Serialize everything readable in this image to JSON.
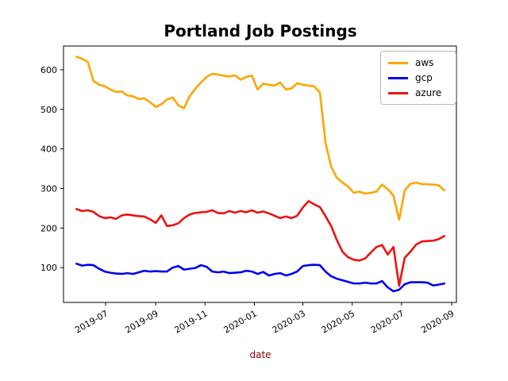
{
  "chart_data": {
    "type": "line",
    "title": "Portland Job Postings",
    "xlabel": "date",
    "xlabel_color": "#8b0000",
    "ylabel": "",
    "grid": false,
    "legend_position": "upper right",
    "ylim": [
      12,
      660
    ],
    "yticks": [
      100,
      200,
      300,
      400,
      500,
      600
    ],
    "xticks": [
      "2019-07",
      "2019-09",
      "2019-11",
      "2020-01",
      "2020-03",
      "2020-05",
      "2020-07",
      "2020-09"
    ],
    "x": [
      "2019-05-26",
      "2019-06-02",
      "2019-06-09",
      "2019-06-16",
      "2019-06-23",
      "2019-06-30",
      "2019-07-07",
      "2019-07-14",
      "2019-07-21",
      "2019-07-28",
      "2019-08-04",
      "2019-08-11",
      "2019-08-18",
      "2019-08-25",
      "2019-09-01",
      "2019-09-08",
      "2019-09-15",
      "2019-09-22",
      "2019-09-29",
      "2019-10-06",
      "2019-10-13",
      "2019-10-20",
      "2019-10-27",
      "2019-11-03",
      "2019-11-10",
      "2019-11-17",
      "2019-11-24",
      "2019-12-01",
      "2019-12-08",
      "2019-12-15",
      "2019-12-22",
      "2019-12-29",
      "2020-01-05",
      "2020-01-12",
      "2020-01-19",
      "2020-01-26",
      "2020-02-02",
      "2020-02-09",
      "2020-02-16",
      "2020-02-23",
      "2020-03-01",
      "2020-03-08",
      "2020-03-15",
      "2020-03-22",
      "2020-03-29",
      "2020-04-05",
      "2020-04-12",
      "2020-04-19",
      "2020-04-26",
      "2020-05-03",
      "2020-05-10",
      "2020-05-17",
      "2020-05-24",
      "2020-05-31",
      "2020-06-07",
      "2020-06-14",
      "2020-06-21",
      "2020-06-28",
      "2020-07-05",
      "2020-07-12",
      "2020-07-19",
      "2020-07-26",
      "2020-08-02",
      "2020-08-09",
      "2020-08-16",
      "2020-08-23"
    ],
    "series": [
      {
        "name": "aws",
        "color": "#ffa500",
        "values": [
          633,
          628,
          620,
          572,
          562,
          558,
          550,
          544,
          545,
          535,
          533,
          526,
          528,
          518,
          506,
          513,
          525,
          530,
          510,
          503,
          533,
          552,
          568,
          582,
          590,
          588,
          585,
          583,
          586,
          575,
          582,
          585,
          550,
          565,
          562,
          560,
          568,
          550,
          553,
          566,
          562,
          560,
          558,
          543,
          415,
          355,
          327,
          315,
          305,
          289,
          292,
          287,
          289,
          292,
          310,
          298,
          282,
          221,
          295,
          312,
          315,
          311,
          311,
          310,
          308,
          295
        ]
      },
      {
        "name": "gcp",
        "color": "#0000ee",
        "values": [
          110,
          105,
          107,
          106,
          97,
          90,
          87,
          85,
          84,
          86,
          84,
          88,
          92,
          90,
          91,
          90,
          90,
          100,
          104,
          95,
          97,
          99,
          106,
          102,
          90,
          88,
          90,
          86,
          87,
          88,
          92,
          90,
          84,
          89,
          80,
          84,
          86,
          80,
          84,
          90,
          104,
          106,
          107,
          106,
          90,
          78,
          72,
          68,
          64,
          60,
          60,
          62,
          60,
          60,
          66,
          50,
          40,
          44,
          58,
          63,
          63,
          63,
          62,
          55,
          57,
          60
        ]
      },
      {
        "name": "azure",
        "color": "#ee1111",
        "values": [
          248,
          243,
          245,
          241,
          230,
          225,
          227,
          223,
          232,
          234,
          232,
          230,
          229,
          222,
          213,
          232,
          205,
          207,
          212,
          225,
          234,
          238,
          240,
          241,
          245,
          238,
          237,
          243,
          239,
          243,
          240,
          245,
          239,
          242,
          237,
          231,
          225,
          229,
          225,
          231,
          252,
          268,
          260,
          253,
          230,
          205,
          170,
          140,
          126,
          120,
          118,
          123,
          138,
          152,
          157,
          133,
          152,
          54,
          125,
          140,
          158,
          166,
          167,
          168,
          172,
          180
        ]
      }
    ]
  }
}
